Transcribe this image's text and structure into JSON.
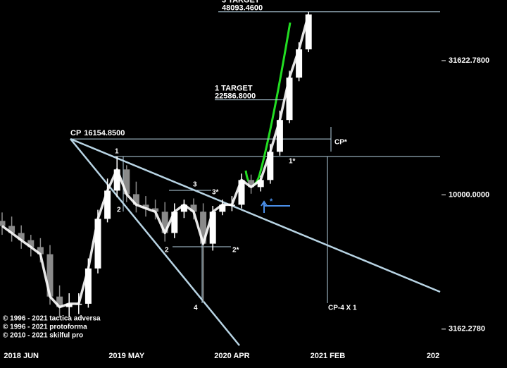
{
  "chart_data": {
    "type": "candlestick",
    "log_scale": true,
    "ylim": [
      2265,
      53200
    ],
    "yticks": [
      {
        "value": 31622.78,
        "label": "31622.7800"
      },
      {
        "value": 10000,
        "label": "10000.0000"
      },
      {
        "value": 3162.278,
        "label": "3162.2780"
      }
    ],
    "up_color": "#ffffff",
    "down_color": "#8a8a8a",
    "line_color": "#ffffff",
    "categories": [
      null,
      null,
      "2018 JUN",
      null,
      null,
      null,
      null,
      null,
      null,
      null,
      null,
      null,
      null,
      "2019 MAY",
      null,
      null,
      null,
      null,
      null,
      null,
      null,
      null,
      null,
      null,
      "2020 APR",
      null,
      null,
      null,
      null,
      null,
      null,
      null,
      null,
      null,
      "2021 FEB",
      null,
      null,
      null,
      null,
      null,
      null,
      null,
      null,
      null,
      null,
      "202"
    ],
    "open": [
      8000,
      7660,
      7210,
      6780,
      6390,
      6010,
      4180,
      3820,
      3930,
      3930,
      5320,
      8140,
      10370,
      12440,
      10060,
      9190,
      8910,
      8650,
      7210,
      8650,
      9190,
      8650,
      6580,
      8650,
      9190,
      9190,
      11360,
      10690,
      11360,
      14470,
      19010,
      27340,
      34840,
      null,
      null,
      null,
      null,
      null,
      null,
      null,
      null,
      null,
      null,
      null,
      null,
      null
    ],
    "high": [
      8600,
      8300,
      7700,
      7100,
      6900,
      6500,
      4600,
      4300,
      4300,
      5800,
      8800,
      11500,
      13900,
      12900,
      11200,
      9900,
      9600,
      9400,
      9300,
      9600,
      9700,
      9300,
      9100,
      9600,
      9900,
      12000,
      11900,
      11800,
      15500,
      20600,
      29000,
      37000,
      48100,
      null,
      null,
      null,
      null,
      null,
      null,
      null,
      null,
      null,
      null,
      null,
      null,
      null
    ],
    "low": [
      7100,
      6700,
      6300,
      5900,
      5600,
      3900,
      3500,
      3500,
      3600,
      3800,
      5100,
      7900,
      9800,
      9400,
      8600,
      8300,
      8100,
      6700,
      6900,
      8200,
      8100,
      4000,
      6200,
      8400,
      8700,
      8900,
      10100,
      10300,
      11000,
      14000,
      18500,
      26500,
      34000,
      null,
      null,
      null,
      null,
      null,
      null,
      null,
      null,
      null,
      null,
      null,
      null,
      null
    ],
    "close": [
      7660,
      7210,
      6780,
      6390,
      6010,
      4180,
      3820,
      3930,
      3930,
      5320,
      8140,
      10370,
      12440,
      10060,
      9190,
      8910,
      8650,
      7210,
      8650,
      9190,
      8650,
      6580,
      8650,
      9190,
      9190,
      11360,
      10690,
      11360,
      14470,
      19010,
      27340,
      34840,
      47000,
      null,
      null,
      null,
      null,
      null,
      null,
      null,
      null,
      null,
      null,
      null,
      null,
      null
    ],
    "levels": [
      {
        "label": "3 TARGET",
        "value": 48093.46,
        "value_label": "48093.4600"
      },
      {
        "label": "1 TARGET",
        "value": 22586.8,
        "value_label": "22586.8000"
      },
      {
        "label": "CP",
        "value": 16154.85,
        "value_label": "16154.8500"
      }
    ],
    "annotations": [
      "1",
      "2",
      "3",
      "3*",
      "2",
      "2*",
      "4",
      "1*",
      "CP*",
      "CP-4 X 1"
    ],
    "copyright": [
      "© 1996 - 2021 tactica adversa",
      "© 1996 - 2021 protoforma",
      "© 2010 - 2021 skilful pro"
    ]
  }
}
